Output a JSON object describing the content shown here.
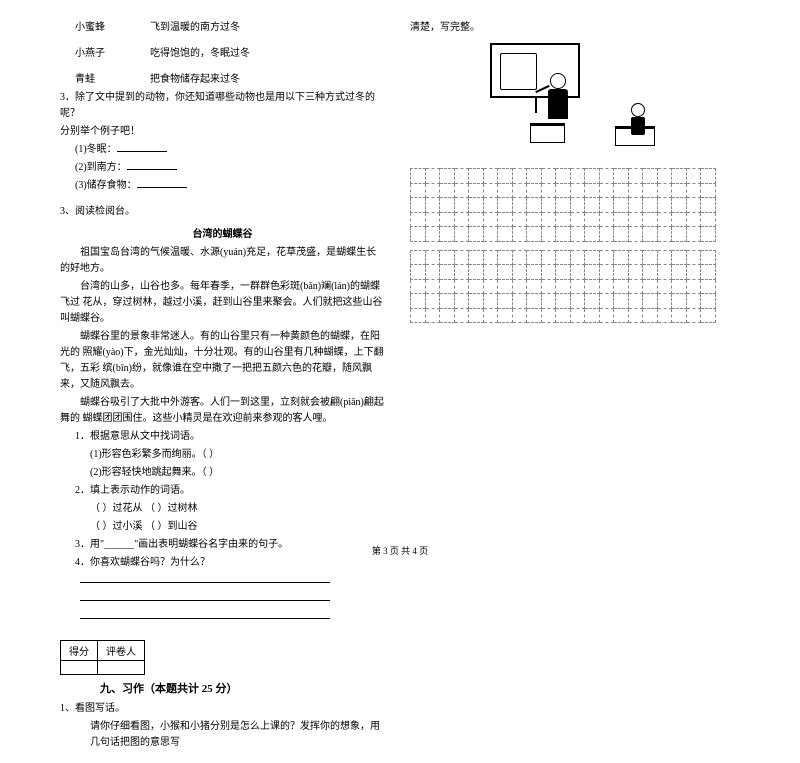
{
  "leftCol": {
    "matching": [
      {
        "a": "小蜜蜂",
        "b": "飞到温暖的南方过冬"
      },
      {
        "a": "小燕子",
        "b": "吃得饱饱的，冬眠过冬"
      },
      {
        "a": "青蛙",
        "b": "把食物储存起来过冬"
      }
    ],
    "q3_intro": "3．除了文中提到的动物，你还知道哪些动物也是用以下三种方式过冬的呢？",
    "q3_sub": "分别举个例子吧！",
    "q3_items": [
      "(1)冬眠：",
      "(2)到南方：",
      "(3)储存食物："
    ],
    "sec3_title": "3、阅读检阅台。",
    "passage_title": "台湾的蝴蝶谷",
    "passage": [
      "祖国宝岛台湾的气候温暖、水源(yuán)充足，花草茂盛，是蝴蝶生长的好地方。",
      "台湾的山多，山谷也多。每年春季，一群群色彩斑(bān)斓(lán)的蝴蝶飞过  花从，穿过树林，越过小溪，赶到山谷里来聚会。人们就把这些山谷叫蝴蝶谷。",
      "蝴蝶谷里的景象非常迷人。有的山谷里只有一种黄颜色的蝴蝶，在阳光的    照耀(yào)下，金光灿灿，十分壮观。有的山谷里有几种蝴蝶，上下翻飞，五彩  缤(bīn)纷，就像谁在空中撒了一把把五颜六色的花瓣，随风飘来，又随风飘去。",
      "蝴蝶谷吸引了大批中外游客。人们一到这里，立刻就会被翩(piān)翩起舞的  蝴蝶团团围住。这些小精灵是在欢迎前来参观的客人哩。"
    ],
    "questions": {
      "q1": "1．根据意思从文中找词语。",
      "q1_items": [
        "(1)形容色彩繁多而绚丽。（          ）",
        "(2)形容轻快地跳起舞来。（          ）"
      ],
      "q2": "2．填上表示动作的词语。",
      "q2_items": [
        "（        ）过花从               （        ）过树林",
        "（        ）过小溪               （        ）到山谷"
      ],
      "q3": "3．用\"______\"画出表明蝴蝶谷名字由来的句子。",
      "q4": "4．你喜欢蝴蝶谷吗？为什么？"
    },
    "scoreLabels": [
      "得分",
      "评卷人"
    ],
    "section9": "九、习作（本题共计 25 分）",
    "composition": {
      "num": "1、看图写话。",
      "prompt": "请你仔细看图，小猴和小猪分别是怎么上课的？发挥你的想象，用几句话把图的意思写"
    }
  },
  "rightCol": {
    "continuation": "清楚，写完整。"
  },
  "footer": "第 3 页 共 4 页",
  "gridCols": 21,
  "gridRowsTop": 5,
  "gridRowsBottom": 5
}
